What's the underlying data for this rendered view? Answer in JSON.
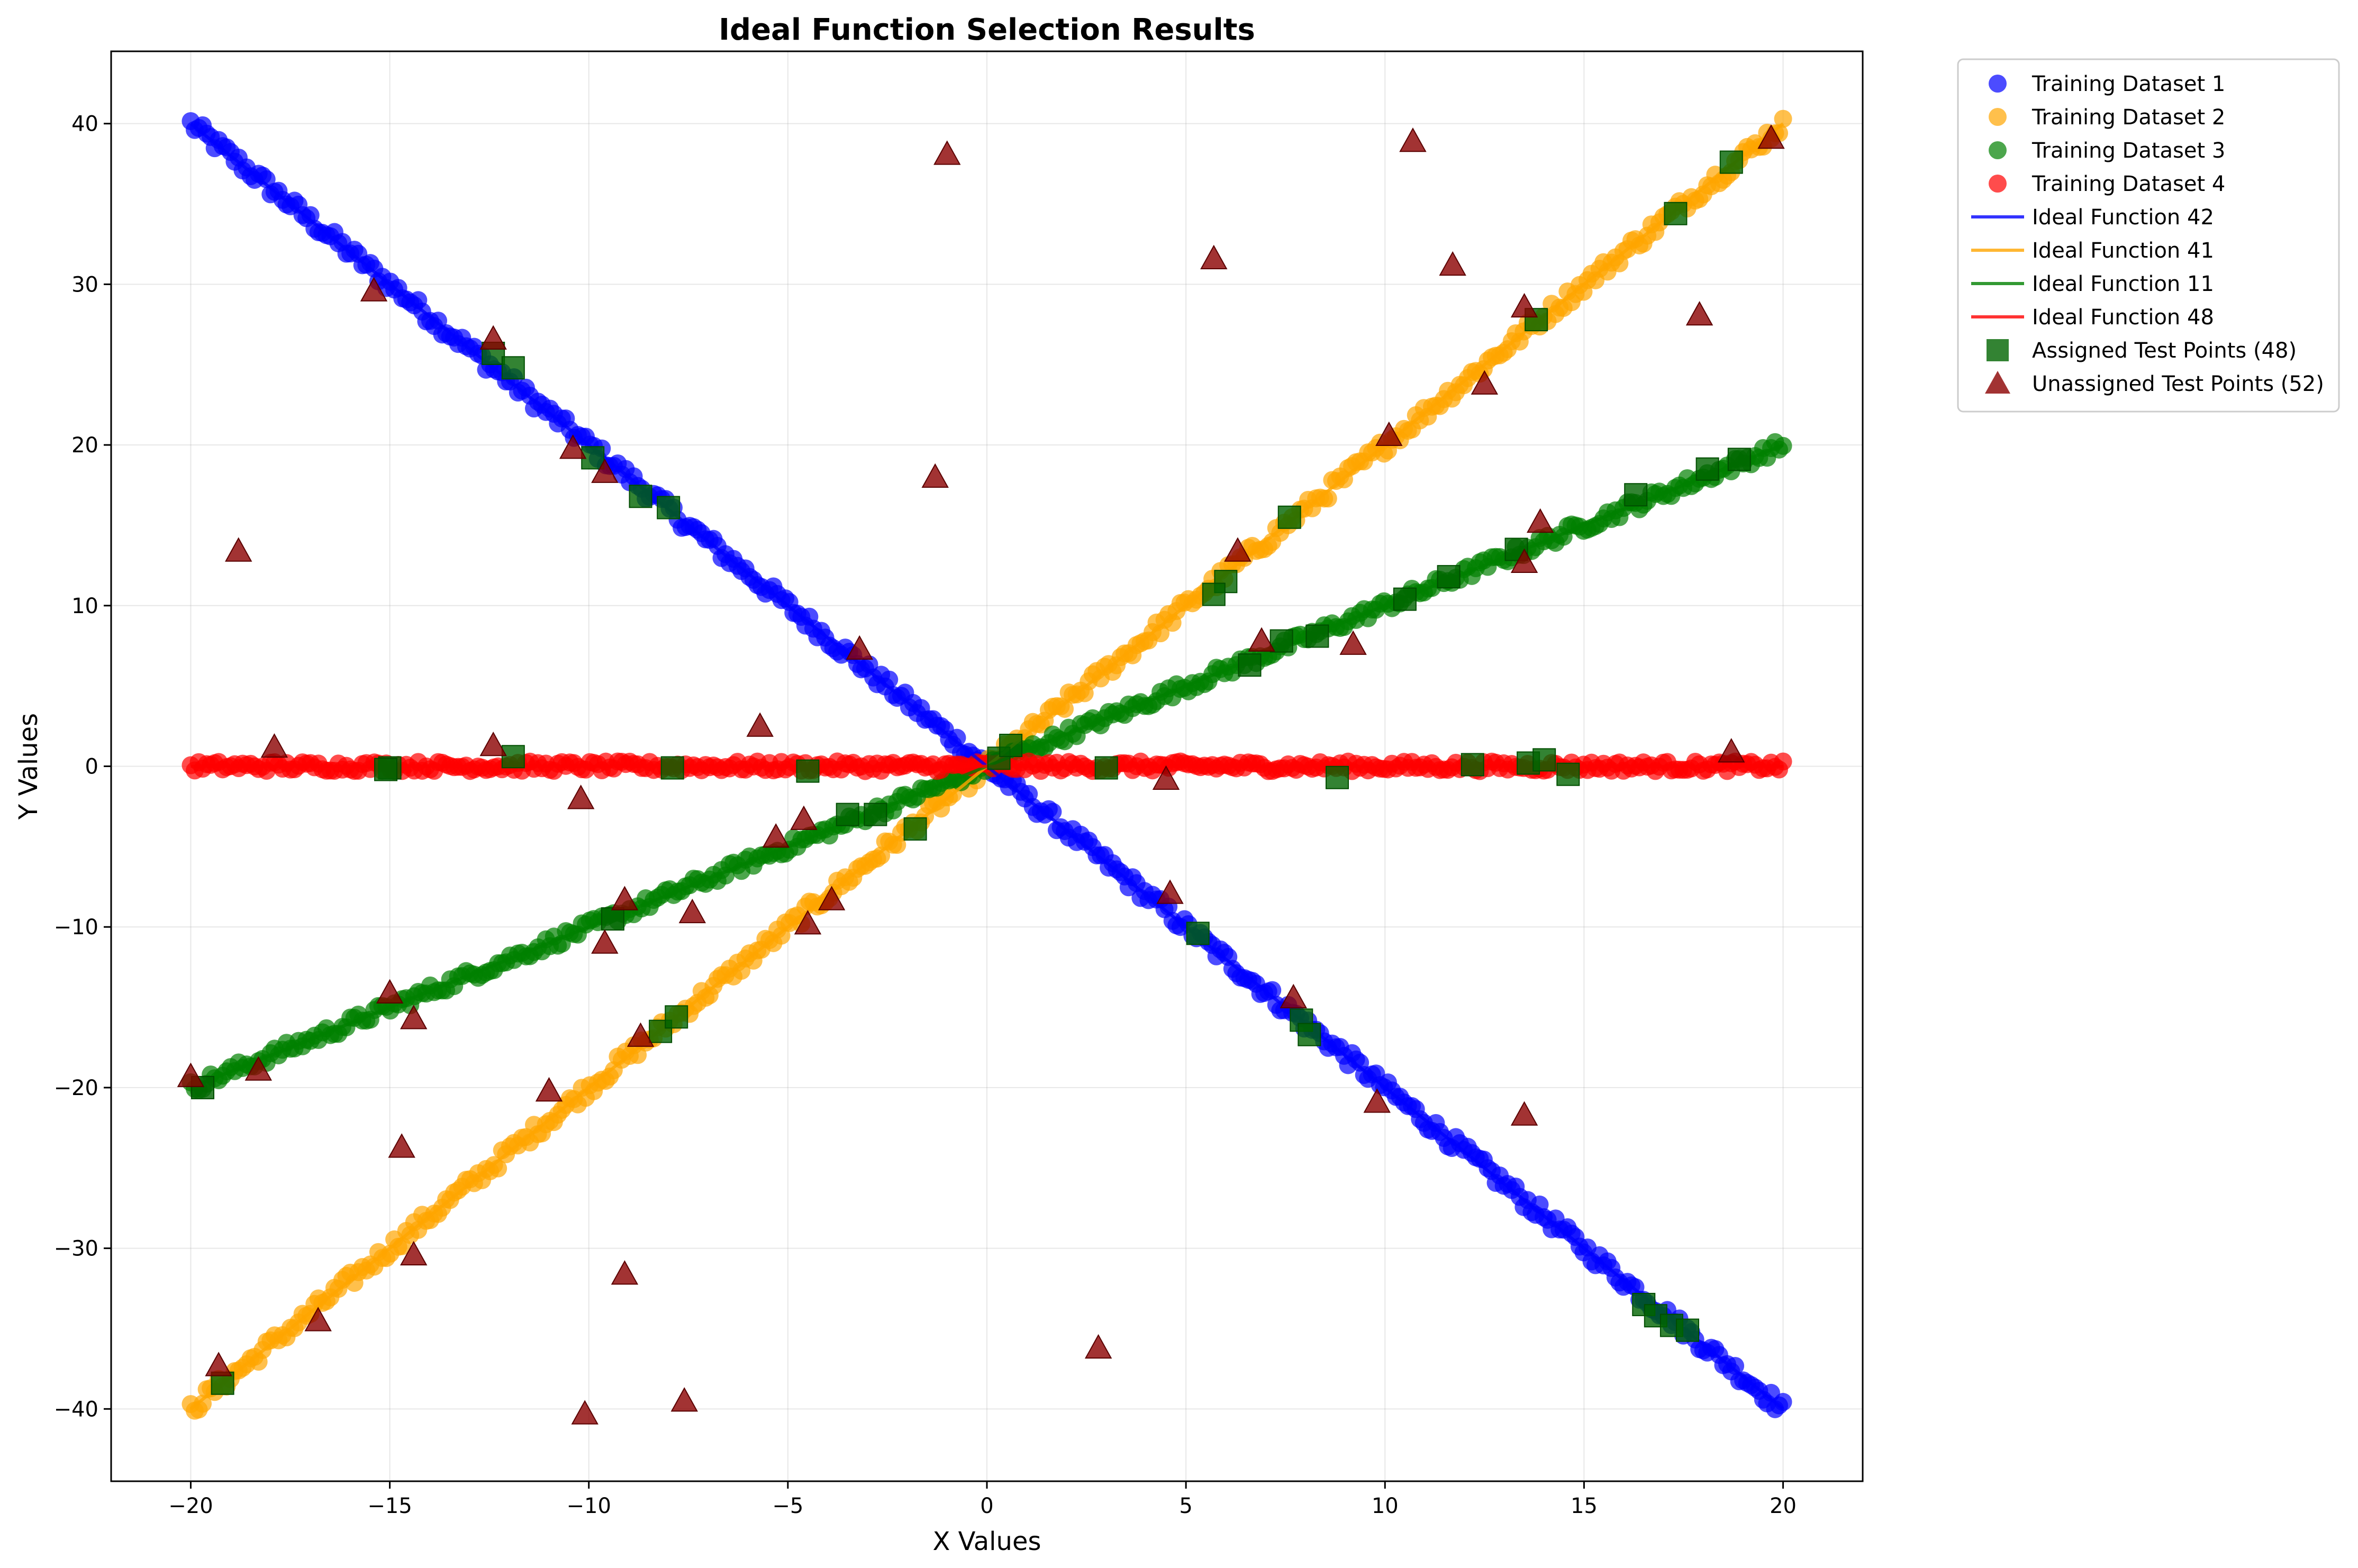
{
  "chart_data": {
    "type": "scatter",
    "title": "Ideal Function Selection Results",
    "xlabel": "X Values",
    "ylabel": "Y Values",
    "xlim": [
      -22,
      22
    ],
    "ylim": [
      -44.5,
      44.5
    ],
    "xticks": [
      -20,
      -15,
      -10,
      -5,
      0,
      5,
      10,
      15,
      20
    ],
    "yticks": [
      -40,
      -30,
      -20,
      -10,
      0,
      10,
      20,
      30,
      40
    ],
    "xtick_labels": [
      "−20",
      "−15",
      "−10",
      "−5",
      "0",
      "5",
      "10",
      "15",
      "20"
    ],
    "ytick_labels": [
      "−40",
      "−30",
      "−20",
      "−10",
      "0",
      "10",
      "20",
      "30",
      "40"
    ],
    "grid": true,
    "legend_position": "outside-top-right",
    "training_series": [
      {
        "name": "Training Dataset 1",
        "color": "#0000ff",
        "x_range": [
          -20,
          20
        ],
        "y_at_x": {
          "-20": 40,
          "0": 0,
          "20": -40
        },
        "noise": 0.5
      },
      {
        "name": "Training Dataset 2",
        "color": "#ffa500",
        "x_range": [
          -20,
          20
        ],
        "y_at_x": {
          "-20": -40,
          "0": 0,
          "20": 40
        },
        "noise": 0.5
      },
      {
        "name": "Training Dataset 3",
        "color": "#008000",
        "x_range": [
          -20,
          20
        ],
        "y_at_x": {
          "-20": -20,
          "0": 0,
          "20": 20
        },
        "noise": 0.4
      },
      {
        "name": "Training Dataset 4",
        "color": "#ff0000",
        "x_range": [
          -20,
          20
        ],
        "y_at_x": {
          "-20": 0,
          "0": 0,
          "20": 0
        },
        "noise": 0.3
      }
    ],
    "ideal_functions": [
      {
        "name": "Ideal Function 42",
        "color": "#0000ff",
        "slope": -2
      },
      {
        "name": "Ideal Function 41",
        "color": "#ffa500",
        "slope": 2
      },
      {
        "name": "Ideal Function 11",
        "color": "#008000",
        "slope": 1
      },
      {
        "name": "Ideal Function 48",
        "color": "#ff0000",
        "slope": 0
      }
    ],
    "assigned_points": {
      "name": "Assigned Test Points (48)",
      "color": "#006400",
      "points": [
        [
          -19.2,
          -38.4
        ],
        [
          -8.2,
          -16.5
        ],
        [
          -7.8,
          -15.6
        ],
        [
          6.0,
          11.5
        ],
        [
          7.6,
          15.5
        ],
        [
          13.8,
          27.8
        ],
        [
          17.3,
          34.4
        ],
        [
          18.7,
          37.6
        ],
        [
          -12.4,
          25.7
        ],
        [
          -11.9,
          24.8
        ],
        [
          -9.9,
          19.2
        ],
        [
          -8.7,
          16.8
        ],
        [
          -8.0,
          16.1
        ],
        [
          5.3,
          -10.4
        ],
        [
          7.9,
          -15.8
        ],
        [
          8.1,
          -16.7
        ],
        [
          16.5,
          -33.5
        ],
        [
          16.8,
          -34.2
        ],
        [
          17.2,
          -34.8
        ],
        [
          17.6,
          -35.1
        ],
        [
          -19.7,
          -20.0
        ],
        [
          -9.4,
          -9.5
        ],
        [
          -2.8,
          -3.0
        ],
        [
          -3.5,
          -3.0
        ],
        [
          -1.8,
          -3.9
        ],
        [
          6.6,
          6.3
        ],
        [
          7.4,
          7.8
        ],
        [
          8.3,
          8.1
        ],
        [
          10.5,
          10.4
        ],
        [
          11.6,
          11.8
        ],
        [
          13.3,
          13.5
        ],
        [
          16.3,
          16.9
        ],
        [
          18.1,
          18.5
        ],
        [
          18.9,
          19.1
        ],
        [
          0.3,
          0.5
        ],
        [
          0.6,
          1.3
        ],
        [
          -15.0,
          -0.1
        ],
        [
          -11.9,
          0.6
        ],
        [
          -7.9,
          -0.1
        ],
        [
          -4.5,
          -0.3
        ],
        [
          3.0,
          -0.1
        ],
        [
          8.8,
          -0.7
        ],
        [
          12.2,
          0.1
        ],
        [
          13.6,
          0.2
        ],
        [
          14.0,
          0.4
        ],
        [
          14.6,
          -0.5
        ],
        [
          5.7,
          10.7
        ],
        [
          -15.1,
          -0.2
        ]
      ]
    },
    "unassigned_points": {
      "name": "Unassigned Test Points (52)",
      "color": "#8b0000",
      "points": [
        [
          -1.0,
          38.1
        ],
        [
          10.7,
          38.9
        ],
        [
          19.7,
          39.1
        ],
        [
          5.7,
          31.6
        ],
        [
          11.7,
          31.2
        ],
        [
          -15.4,
          29.6
        ],
        [
          13.5,
          28.6
        ],
        [
          17.9,
          28.1
        ],
        [
          -12.4,
          26.6
        ],
        [
          12.5,
          23.8
        ],
        [
          10.1,
          20.6
        ],
        [
          -10.4,
          19.8
        ],
        [
          -9.6,
          18.3
        ],
        [
          -1.3,
          18.0
        ],
        [
          13.9,
          15.2
        ],
        [
          -18.8,
          13.4
        ],
        [
          6.3,
          13.4
        ],
        [
          13.5,
          12.7
        ],
        [
          6.9,
          7.8
        ],
        [
          9.2,
          7.6
        ],
        [
          -3.2,
          7.3
        ],
        [
          -5.7,
          2.5
        ],
        [
          -12.4,
          1.3
        ],
        [
          -17.9,
          1.2
        ],
        [
          18.7,
          0.9
        ],
        [
          4.5,
          -0.8
        ],
        [
          -10.2,
          -2.0
        ],
        [
          -4.6,
          -3.3
        ],
        [
          -5.3,
          -4.4
        ],
        [
          4.6,
          -7.9
        ],
        [
          -3.9,
          -8.3
        ],
        [
          -9.1,
          -8.3
        ],
        [
          -7.4,
          -9.1
        ],
        [
          -4.5,
          -9.8
        ],
        [
          -9.6,
          -11.0
        ],
        [
          -15.0,
          -14.1
        ],
        [
          7.7,
          -14.4
        ],
        [
          -14.4,
          -15.7
        ],
        [
          -8.7,
          -16.8
        ],
        [
          -18.3,
          -18.9
        ],
        [
          -20.0,
          -19.3
        ],
        [
          -11.0,
          -20.2
        ],
        [
          9.8,
          -20.9
        ],
        [
          13.5,
          -21.7
        ],
        [
          -14.7,
          -23.7
        ],
        [
          -14.4,
          -30.4
        ],
        [
          -9.1,
          -31.6
        ],
        [
          -16.8,
          -34.5
        ],
        [
          2.8,
          -36.2
        ],
        [
          -19.3,
          -37.3
        ],
        [
          -7.6,
          -39.5
        ],
        [
          -10.1,
          -40.3
        ]
      ]
    }
  }
}
